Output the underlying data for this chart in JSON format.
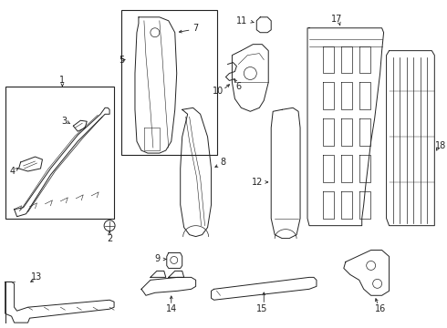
{
  "background_color": "#ffffff",
  "line_color": "#222222",
  "fig_w": 4.9,
  "fig_h": 3.6,
  "dpi": 100
}
